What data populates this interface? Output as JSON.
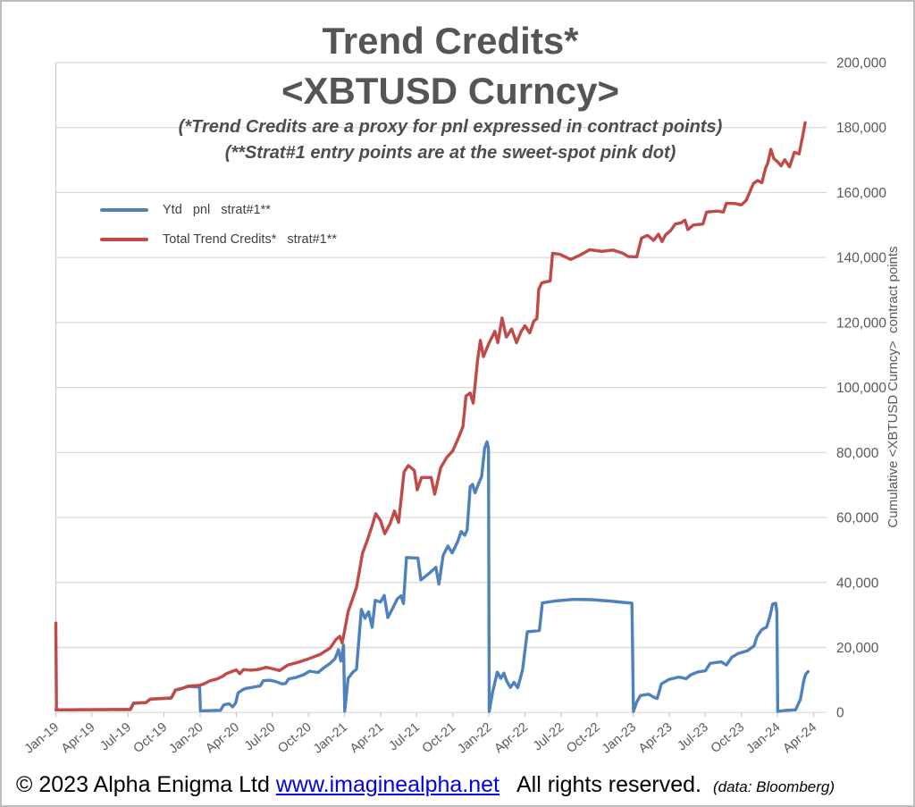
{
  "title": {
    "line1": "Trend Credits*",
    "line2": "<XBTUSD Curncy>"
  },
  "subtitle": {
    "line1": "(*Trend Credits are a proxy for pnl expressed in contract points)",
    "line2": "(**Strat#1 entry points are at the sweet-spot pink dot)"
  },
  "legend": {
    "items": [
      {
        "label": "Ytd   pnl   strat#1**",
        "color": "#4f81bd"
      },
      {
        "label": "Total Trend Credits*   strat#1**",
        "color": "#bf4a47"
      }
    ]
  },
  "footer": {
    "copyright": "© 2023 Alpha Enigma Ltd",
    "link": "www.imaginealpha.net",
    "rights": "All rights reserved.",
    "source": "(data: Bloomberg)"
  },
  "chart_data": {
    "type": "line",
    "title": "Trend Credits* <XBTUSD Curncy>",
    "ylabel": "Cumulative <XBTUSD Curncy>  contract points",
    "xlabel": "",
    "ylim": [
      0,
      200000
    ],
    "grid": true,
    "legend_position": "upper-left-inside",
    "y_ticks": [
      0,
      20000,
      40000,
      60000,
      80000,
      100000,
      120000,
      140000,
      160000,
      180000,
      200000
    ],
    "x_unit": "months since Jan-2019",
    "x_tick_months": [
      0,
      3,
      6,
      9,
      12,
      15,
      18,
      21,
      24,
      27,
      30,
      33,
      36,
      39,
      42,
      45,
      48,
      51,
      54,
      57,
      60,
      63
    ],
    "x_tick_labels": [
      "Jan-19",
      "Apr-19",
      "Jul-19",
      "Oct-19",
      "Jan-20",
      "Apr-20",
      "Jul-20",
      "Oct-20",
      "Jan-21",
      "Apr-21",
      "Jul-21",
      "Oct-21",
      "Jan-22",
      "Apr-22",
      "Jul-22",
      "Oct-22",
      "Jan-23",
      "Apr-23",
      "Jul-23",
      "Oct-23",
      "Jan-24",
      "Apr-24"
    ],
    "colors": {
      "grid": "#d8d8d8",
      "axis": "#c9c9c9",
      "tick_text": "#595959"
    },
    "series": [
      {
        "name": "Ytd pnl strat#1**",
        "color": "#4f81bd",
        "points": [
          [
            0,
            800
          ],
          [
            6.2,
            900
          ],
          [
            6.45,
            2800
          ],
          [
            7.5,
            3050
          ],
          [
            7.85,
            4100
          ],
          [
            9.6,
            4450
          ],
          [
            9.95,
            6900
          ],
          [
            10.5,
            7400
          ],
          [
            11,
            8000
          ],
          [
            11.95,
            7800
          ],
          [
            12.02,
            500
          ],
          [
            13.7,
            650
          ],
          [
            13.95,
            2300
          ],
          [
            14.4,
            2700
          ],
          [
            14.7,
            1700
          ],
          [
            14.95,
            2900
          ],
          [
            15.15,
            6000
          ],
          [
            15.5,
            6900
          ],
          [
            15.8,
            7400
          ],
          [
            16.3,
            7700
          ],
          [
            17.0,
            8200
          ],
          [
            17.25,
            9800
          ],
          [
            17.8,
            9900
          ],
          [
            18.3,
            9500
          ],
          [
            18.8,
            8800
          ],
          [
            19.1,
            8900
          ],
          [
            19.35,
            10300
          ],
          [
            20.0,
            10800
          ],
          [
            20.6,
            11600
          ],
          [
            21.1,
            12700
          ],
          [
            21.8,
            12300
          ],
          [
            22.3,
            13800
          ],
          [
            22.8,
            15100
          ],
          [
            23.2,
            16500
          ],
          [
            23.5,
            19300
          ],
          [
            23.7,
            15800
          ],
          [
            23.92,
            20700
          ],
          [
            24.02,
            400
          ],
          [
            24.3,
            10500
          ],
          [
            24.7,
            12400
          ],
          [
            25.0,
            13300
          ],
          [
            25.4,
            31700
          ],
          [
            25.7,
            29000
          ],
          [
            26.0,
            31000
          ],
          [
            26.3,
            26200
          ],
          [
            26.55,
            34500
          ],
          [
            27.0,
            34000
          ],
          [
            27.3,
            36000
          ],
          [
            27.6,
            29200
          ],
          [
            28.0,
            32000
          ],
          [
            28.4,
            35000
          ],
          [
            28.7,
            35900
          ],
          [
            28.9,
            33500
          ],
          [
            29.15,
            47700
          ],
          [
            30.1,
            47500
          ],
          [
            30.35,
            40800
          ],
          [
            31.1,
            43000
          ],
          [
            31.6,
            44700
          ],
          [
            31.85,
            39500
          ],
          [
            32.2,
            48300
          ],
          [
            32.6,
            51200
          ],
          [
            32.95,
            49100
          ],
          [
            33.4,
            52500
          ],
          [
            33.7,
            55700
          ],
          [
            34.0,
            54500
          ],
          [
            34.2,
            56200
          ],
          [
            34.45,
            69500
          ],
          [
            34.65,
            70200
          ],
          [
            34.85,
            67600
          ],
          [
            35.1,
            70000
          ],
          [
            35.4,
            72600
          ],
          [
            35.65,
            81400
          ],
          [
            35.85,
            83300
          ],
          [
            35.97,
            81000
          ],
          [
            36.03,
            300
          ],
          [
            36.3,
            6000
          ],
          [
            36.7,
            12400
          ],
          [
            37.0,
            10500
          ],
          [
            37.25,
            12100
          ],
          [
            37.5,
            9500
          ],
          [
            37.8,
            7700
          ],
          [
            38.1,
            9300
          ],
          [
            38.4,
            7600
          ],
          [
            38.8,
            13100
          ],
          [
            39.2,
            24800
          ],
          [
            40.2,
            25200
          ],
          [
            40.45,
            33700
          ],
          [
            41.5,
            34300
          ],
          [
            43.0,
            34800
          ],
          [
            44.5,
            34700
          ],
          [
            46.0,
            34300
          ],
          [
            47.9,
            33600
          ],
          [
            48.02,
            300
          ],
          [
            48.3,
            3200
          ],
          [
            48.6,
            5200
          ],
          [
            49.3,
            5600
          ],
          [
            49.7,
            4700
          ],
          [
            50.0,
            4300
          ],
          [
            50.35,
            8800
          ],
          [
            51.0,
            10200
          ],
          [
            51.8,
            10900
          ],
          [
            52.4,
            10400
          ],
          [
            52.8,
            11600
          ],
          [
            53.4,
            12500
          ],
          [
            54.0,
            12800
          ],
          [
            54.4,
            15100
          ],
          [
            55.3,
            15600
          ],
          [
            55.75,
            14600
          ],
          [
            56.2,
            17000
          ],
          [
            56.7,
            18100
          ],
          [
            57.5,
            19000
          ],
          [
            58.05,
            20500
          ],
          [
            58.3,
            23400
          ],
          [
            58.7,
            25500
          ],
          [
            59.1,
            26300
          ],
          [
            59.4,
            30000
          ],
          [
            59.6,
            33400
          ],
          [
            59.85,
            33600
          ],
          [
            59.95,
            31000
          ],
          [
            60.02,
            300
          ],
          [
            60.6,
            600
          ],
          [
            61.5,
            800
          ],
          [
            61.9,
            4000
          ],
          [
            62.2,
            10000
          ],
          [
            62.35,
            11800
          ],
          [
            62.55,
            12600
          ]
        ]
      },
      {
        "name": "Total Trend Credits* strat#1**",
        "color": "#bf4a47",
        "points": [
          [
            0,
            27500
          ],
          [
            0.05,
            800
          ],
          [
            1,
            800
          ],
          [
            2,
            850
          ],
          [
            3,
            850
          ],
          [
            4,
            850
          ],
          [
            5,
            900
          ],
          [
            6.2,
            900
          ],
          [
            6.45,
            2800
          ],
          [
            7.5,
            3050
          ],
          [
            7.85,
            4100
          ],
          [
            9.6,
            4450
          ],
          [
            9.95,
            6900
          ],
          [
            10.5,
            7400
          ],
          [
            11,
            8100
          ],
          [
            11.9,
            8300
          ],
          [
            12.3,
            8800
          ],
          [
            12.8,
            9700
          ],
          [
            13.4,
            10300
          ],
          [
            13.9,
            11200
          ],
          [
            14.15,
            11900
          ],
          [
            14.5,
            12400
          ],
          [
            15.0,
            13100
          ],
          [
            15.3,
            11900
          ],
          [
            15.6,
            13200
          ],
          [
            16.2,
            13000
          ],
          [
            16.8,
            13200
          ],
          [
            17.5,
            13900
          ],
          [
            18.1,
            13400
          ],
          [
            18.6,
            12900
          ],
          [
            19.3,
            14600
          ],
          [
            20.1,
            15400
          ],
          [
            21.0,
            16500
          ],
          [
            22.0,
            17900
          ],
          [
            22.8,
            19800
          ],
          [
            23.3,
            22500
          ],
          [
            23.6,
            23400
          ],
          [
            23.8,
            21400
          ],
          [
            24.0,
            25000
          ],
          [
            24.3,
            31000
          ],
          [
            24.6,
            34200
          ],
          [
            25.0,
            38500
          ],
          [
            25.5,
            49000
          ],
          [
            25.9,
            53000
          ],
          [
            26.3,
            57500
          ],
          [
            26.6,
            61200
          ],
          [
            27.0,
            59000
          ],
          [
            27.35,
            55000
          ],
          [
            27.8,
            58200
          ],
          [
            28.15,
            62000
          ],
          [
            28.5,
            58500
          ],
          [
            28.95,
            74000
          ],
          [
            29.3,
            76000
          ],
          [
            29.8,
            74500
          ],
          [
            30.05,
            68500
          ],
          [
            30.4,
            72300
          ],
          [
            31.2,
            72300
          ],
          [
            31.5,
            67200
          ],
          [
            32.0,
            75300
          ],
          [
            32.5,
            78500
          ],
          [
            33.0,
            80500
          ],
          [
            33.5,
            84700
          ],
          [
            33.85,
            88000
          ],
          [
            34.1,
            97400
          ],
          [
            34.45,
            98300
          ],
          [
            34.7,
            95200
          ],
          [
            35.05,
            108000
          ],
          [
            35.3,
            114500
          ],
          [
            35.55,
            109500
          ],
          [
            36.0,
            113600
          ],
          [
            36.5,
            117300
          ],
          [
            36.75,
            113800
          ],
          [
            37.1,
            121400
          ],
          [
            37.45,
            115500
          ],
          [
            37.9,
            118000
          ],
          [
            38.3,
            113800
          ],
          [
            38.7,
            117300
          ],
          [
            39.0,
            119000
          ],
          [
            39.4,
            116800
          ],
          [
            39.75,
            120500
          ],
          [
            40.0,
            121200
          ],
          [
            40.15,
            130200
          ],
          [
            40.4,
            132200
          ],
          [
            41.1,
            132800
          ],
          [
            41.3,
            141300
          ],
          [
            41.9,
            141000
          ],
          [
            42.8,
            139400
          ],
          [
            43.6,
            140800
          ],
          [
            44.4,
            142400
          ],
          [
            45.4,
            141900
          ],
          [
            46.3,
            142300
          ],
          [
            47.1,
            141400
          ],
          [
            47.6,
            140300
          ],
          [
            48.3,
            140200
          ],
          [
            48.7,
            146000
          ],
          [
            49.2,
            146800
          ],
          [
            49.7,
            145300
          ],
          [
            50.1,
            147200
          ],
          [
            50.4,
            144900
          ],
          [
            50.7,
            147000
          ],
          [
            51.1,
            148200
          ],
          [
            51.5,
            150300
          ],
          [
            52.0,
            150700
          ],
          [
            52.3,
            151500
          ],
          [
            52.55,
            148600
          ],
          [
            53.0,
            150000
          ],
          [
            53.8,
            150300
          ],
          [
            54.1,
            154000
          ],
          [
            55.0,
            154300
          ],
          [
            55.5,
            154000
          ],
          [
            55.75,
            156700
          ],
          [
            56.5,
            156600
          ],
          [
            57.0,
            156200
          ],
          [
            57.4,
            157600
          ],
          [
            58.0,
            162800
          ],
          [
            58.35,
            163700
          ],
          [
            58.7,
            163000
          ],
          [
            59.0,
            167400
          ],
          [
            59.2,
            169200
          ],
          [
            59.45,
            173300
          ],
          [
            59.7,
            170400
          ],
          [
            60.0,
            169500
          ],
          [
            60.3,
            168200
          ],
          [
            60.6,
            170100
          ],
          [
            61.0,
            167900
          ],
          [
            61.4,
            172400
          ],
          [
            61.8,
            171900
          ],
          [
            62.1,
            177500
          ],
          [
            62.3,
            181500
          ]
        ]
      }
    ]
  }
}
